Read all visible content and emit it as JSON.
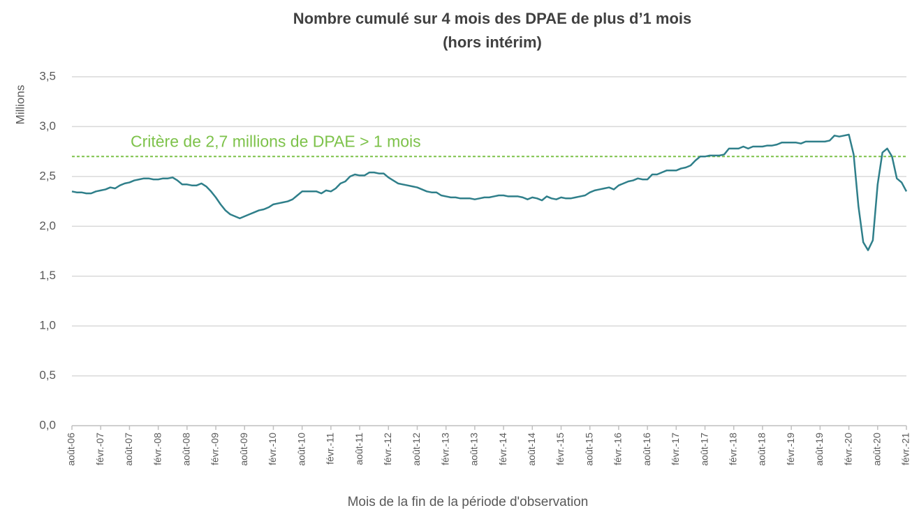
{
  "chart_data": {
    "type": "line",
    "title": [
      "Nombre cumulé sur 4 mois des DPAE de plus d’1 mois",
      "(hors intérim)"
    ],
    "y_label": "Millions",
    "x_label": "Mois de la fin de la période d'observation",
    "reference_line": {
      "value": 2.7,
      "label": "Critère de 2,7 millions de DPAE > 1 mois",
      "color": "#7dc24a"
    },
    "ylim": [
      0,
      3.5
    ],
    "yticks": [
      {
        "value": 0,
        "label": "0,0"
      },
      {
        "value": 0.5,
        "label": "0,5"
      },
      {
        "value": 1,
        "label": "1,0"
      },
      {
        "value": 1.5,
        "label": "1,5"
      },
      {
        "value": 2,
        "label": "2,0"
      },
      {
        "value": 2.5,
        "label": "2,5"
      },
      {
        "value": 3,
        "label": "3,0"
      },
      {
        "value": 3.5,
        "label": "3,5"
      }
    ],
    "grid": true,
    "categories": [
      "août-06",
      null,
      null,
      null,
      null,
      null,
      "févr.-07",
      null,
      null,
      null,
      null,
      null,
      "août-07",
      null,
      null,
      null,
      null,
      null,
      "févr.-08",
      null,
      null,
      null,
      null,
      null,
      "août-08",
      null,
      null,
      null,
      null,
      null,
      "févr.-09",
      null,
      null,
      null,
      null,
      null,
      "août-09",
      null,
      null,
      null,
      null,
      null,
      "févr.-10",
      null,
      null,
      null,
      null,
      null,
      "août-10",
      null,
      null,
      null,
      null,
      null,
      "févr.-11",
      null,
      null,
      null,
      null,
      null,
      "août-11",
      null,
      null,
      null,
      null,
      null,
      "févr.-12",
      null,
      null,
      null,
      null,
      null,
      "août-12",
      null,
      null,
      null,
      null,
      null,
      "févr.-13",
      null,
      null,
      null,
      null,
      null,
      "août-13",
      null,
      null,
      null,
      null,
      null,
      "févr.-14",
      null,
      null,
      null,
      null,
      null,
      "août-14",
      null,
      null,
      null,
      null,
      null,
      "févr.-15",
      null,
      null,
      null,
      null,
      null,
      "août-15",
      null,
      null,
      null,
      null,
      null,
      "févr.-16",
      null,
      null,
      null,
      null,
      null,
      "août-16",
      null,
      null,
      null,
      null,
      null,
      "févr.-17",
      null,
      null,
      null,
      null,
      null,
      "août-17",
      null,
      null,
      null,
      null,
      null,
      "févr.-18",
      null,
      null,
      null,
      null,
      null,
      "août-18",
      null,
      null,
      null,
      null,
      null,
      "févr.-19",
      null,
      null,
      null,
      null,
      null,
      "août-19",
      null,
      null,
      null,
      null,
      null,
      "févr.-20",
      null,
      null,
      null,
      null,
      null,
      "août-20",
      null,
      null,
      null,
      null,
      null,
      "févr.-21"
    ],
    "series": [
      {
        "name": "DPAE",
        "color": "#2f7f8a",
        "values": [
          2.35,
          2.34,
          2.34,
          2.33,
          2.33,
          2.35,
          2.36,
          2.37,
          2.39,
          2.38,
          2.41,
          2.43,
          2.44,
          2.46,
          2.47,
          2.48,
          2.48,
          2.47,
          2.47,
          2.48,
          2.48,
          2.49,
          2.46,
          2.42,
          2.42,
          2.41,
          2.41,
          2.43,
          2.4,
          2.35,
          2.29,
          2.22,
          2.16,
          2.12,
          2.1,
          2.08,
          2.1,
          2.12,
          2.14,
          2.16,
          2.17,
          2.19,
          2.22,
          2.23,
          2.24,
          2.25,
          2.27,
          2.31,
          2.35,
          2.35,
          2.35,
          2.35,
          2.33,
          2.36,
          2.35,
          2.38,
          2.43,
          2.45,
          2.5,
          2.52,
          2.51,
          2.51,
          2.54,
          2.54,
          2.53,
          2.53,
          2.49,
          2.46,
          2.43,
          2.42,
          2.41,
          2.4,
          2.39,
          2.37,
          2.35,
          2.34,
          2.34,
          2.31,
          2.3,
          2.29,
          2.29,
          2.28,
          2.28,
          2.28,
          2.27,
          2.28,
          2.29,
          2.29,
          2.3,
          2.31,
          2.31,
          2.3,
          2.3,
          2.3,
          2.29,
          2.27,
          2.29,
          2.28,
          2.26,
          2.3,
          2.28,
          2.27,
          2.29,
          2.28,
          2.28,
          2.29,
          2.3,
          2.31,
          2.34,
          2.36,
          2.37,
          2.38,
          2.39,
          2.37,
          2.41,
          2.43,
          2.45,
          2.46,
          2.48,
          2.47,
          2.47,
          2.52,
          2.52,
          2.54,
          2.56,
          2.56,
          2.56,
          2.58,
          2.59,
          2.61,
          2.66,
          2.7,
          2.7,
          2.71,
          2.71,
          2.71,
          2.72,
          2.78,
          2.78,
          2.78,
          2.8,
          2.78,
          2.8,
          2.8,
          2.8,
          2.81,
          2.81,
          2.82,
          2.84,
          2.84,
          2.84,
          2.84,
          2.83,
          2.85,
          2.85,
          2.85,
          2.85,
          2.85,
          2.86,
          2.91,
          2.9,
          2.91,
          2.92,
          2.72,
          2.2,
          1.84,
          1.76,
          1.86,
          2.42,
          2.74,
          2.78,
          2.7,
          2.48,
          2.44,
          2.35
        ]
      }
    ]
  }
}
